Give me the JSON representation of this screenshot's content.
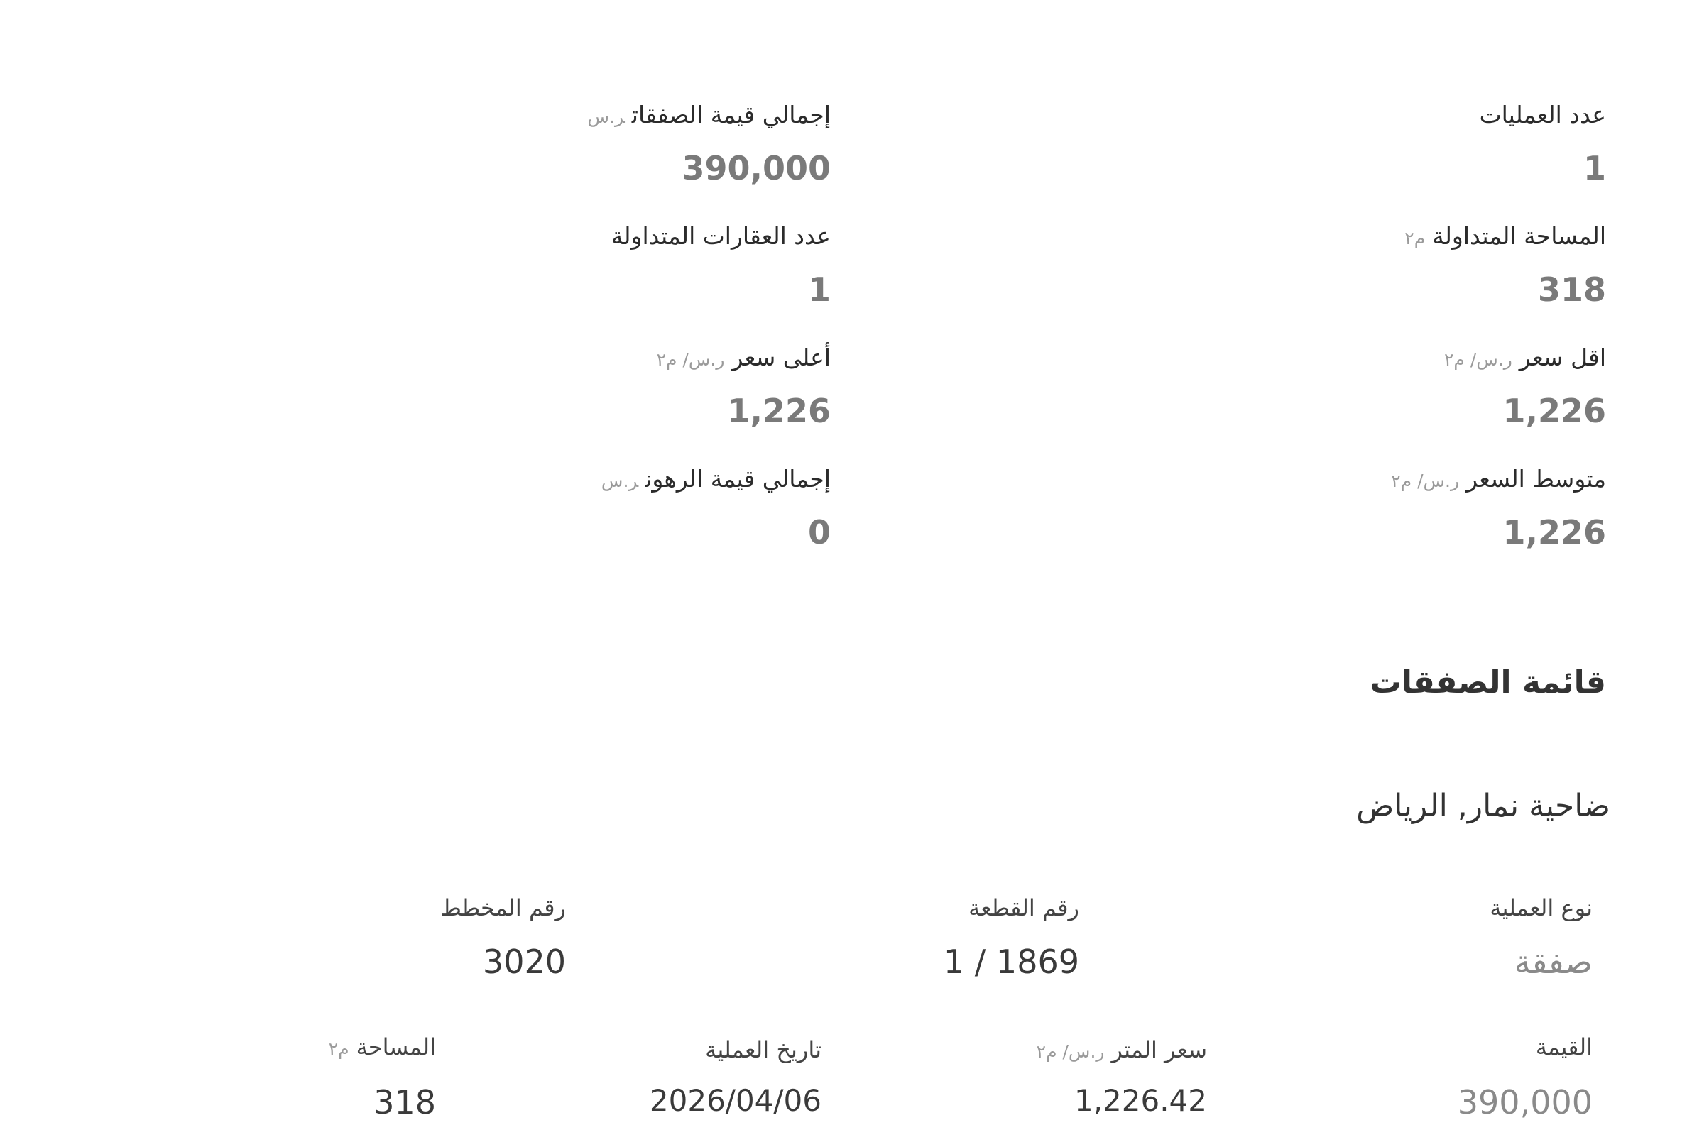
{
  "summary": {
    "stats": [
      {
        "label": "عدد العمليات",
        "unit": "",
        "value": "1"
      },
      {
        "label": "إجمالي قيمة الصفقات",
        "unit": "ر.س",
        "value": "390,000"
      },
      {
        "label": "المساحة المتداولة",
        "unit": "م٢",
        "value": "318"
      },
      {
        "label": "عدد العقارات المتداولة",
        "unit": "",
        "value": "1"
      },
      {
        "label": "اقل سعر",
        "unit": "ر.س/ م٢",
        "value": "1,226"
      },
      {
        "label": "أعلى سعر",
        "unit": "ر.س/ م٢",
        "value": "1,226"
      },
      {
        "label": "متوسط السعر",
        "unit": "ر.س/ م٢",
        "value": "1,226"
      },
      {
        "label": "إجمالي قيمة الرهون",
        "unit": "ر.س",
        "value": "0"
      }
    ]
  },
  "deals": {
    "title": "قائمة الصفقات",
    "items": [
      {
        "location": "ضاحية نمار, الرياض",
        "fields": [
          {
            "label": "نوع العملية",
            "unit": "",
            "value": "صفقة"
          },
          {
            "label": "رقم القطعة",
            "unit": "",
            "value": "1 / 1869"
          },
          {
            "label": "رقم المخطط",
            "unit": "",
            "value": "3020"
          },
          {
            "label": "القيمة",
            "unit": "",
            "value": "390,000"
          },
          {
            "label": "سعر المتر",
            "unit": "ر.س/ م٢",
            "value": "1,226.42"
          },
          {
            "label": "تاريخ العملية",
            "unit": "",
            "value": "2026/04/06"
          },
          {
            "label": "المساحة",
            "unit": "م٢",
            "value": "318"
          }
        ]
      }
    ]
  }
}
